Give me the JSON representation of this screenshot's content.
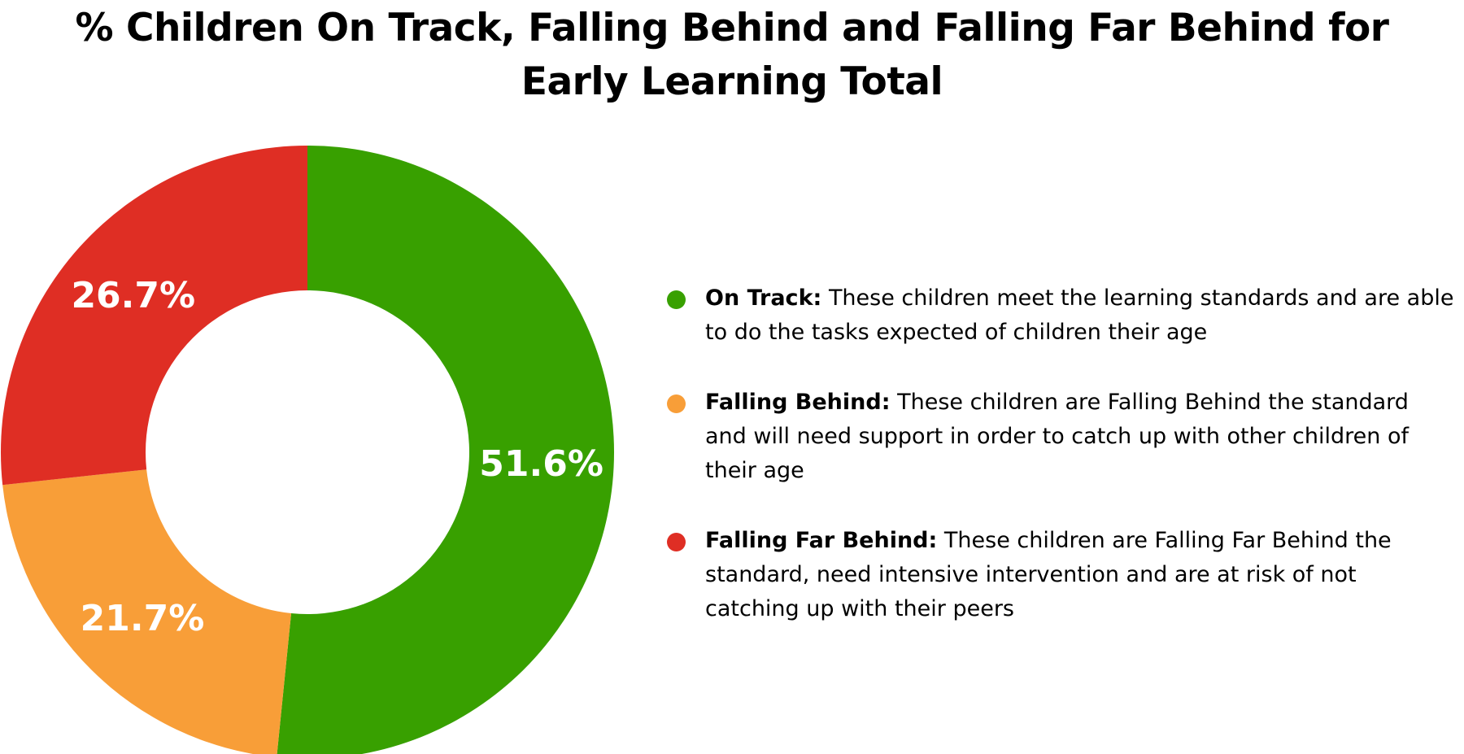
{
  "title_lines": [
    "% Children On Track, Falling Behind and Falling Far Behind for",
    "Early Learning Total"
  ],
  "chart_data": {
    "type": "pie",
    "title": "% Children On Track, Falling Behind and Falling Far Behind for Early Learning Total",
    "donut": true,
    "legend_position": "right",
    "start_angle_degrees": 0,
    "direction": "clockwise",
    "slices": [
      {
        "name": "On Track",
        "value": 51.6,
        "label": "51.6%",
        "color": "#38A000",
        "description": "These children meet the learning standards and are able to do the tasks expected of children their age"
      },
      {
        "name": "Falling Behind",
        "value": 21.7,
        "label": "21.7%",
        "color": "#F89E38",
        "description": "These children are Falling Behind the standard and will need support in order to catch up with other children of their age"
      },
      {
        "name": "Falling Far Behind",
        "value": 26.7,
        "label": "26.7%",
        "color": "#DF2E24",
        "description": "These children are Falling Far Behind the standard, need intensive intervention and are at risk of not catching up with their peers"
      }
    ]
  }
}
